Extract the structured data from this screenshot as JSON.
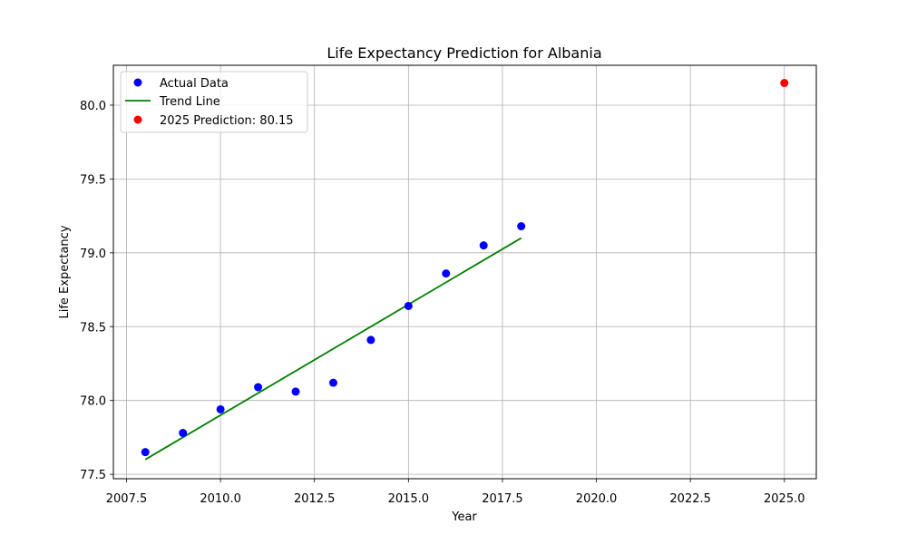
{
  "chart_data": {
    "type": "scatter",
    "title": "Life Expectancy Prediction for Albania",
    "xlabel": "Year",
    "ylabel": "Life Expectancy",
    "xlim": [
      2007.15,
      2025.85
    ],
    "ylim": [
      77.47,
      80.27
    ],
    "xticks": [
      "2007.5",
      "2010.0",
      "2012.5",
      "2015.0",
      "2017.5",
      "2020.0",
      "2022.5",
      "2025.0"
    ],
    "yticks": [
      "77.5",
      "78.0",
      "78.5",
      "79.0",
      "79.5",
      "80.0"
    ],
    "grid": true,
    "legend_position": "top-left",
    "series": [
      {
        "name": "Actual Data",
        "kind": "scatter",
        "color": "#0000ff",
        "x": [
          2008,
          2009,
          2010,
          2011,
          2012,
          2013,
          2014,
          2015,
          2016,
          2017,
          2018
        ],
        "y": [
          77.65,
          77.78,
          77.94,
          78.09,
          78.06,
          78.12,
          78.41,
          78.64,
          78.86,
          79.05,
          79.18
        ]
      },
      {
        "name": "Trend Line",
        "kind": "line",
        "color": "#008000",
        "x": [
          2008,
          2018
        ],
        "y": [
          77.6,
          79.1
        ]
      },
      {
        "name": "2025 Prediction: 80.15",
        "kind": "scatter",
        "color": "#ff0000",
        "x": [
          2025
        ],
        "y": [
          80.15
        ]
      }
    ]
  }
}
